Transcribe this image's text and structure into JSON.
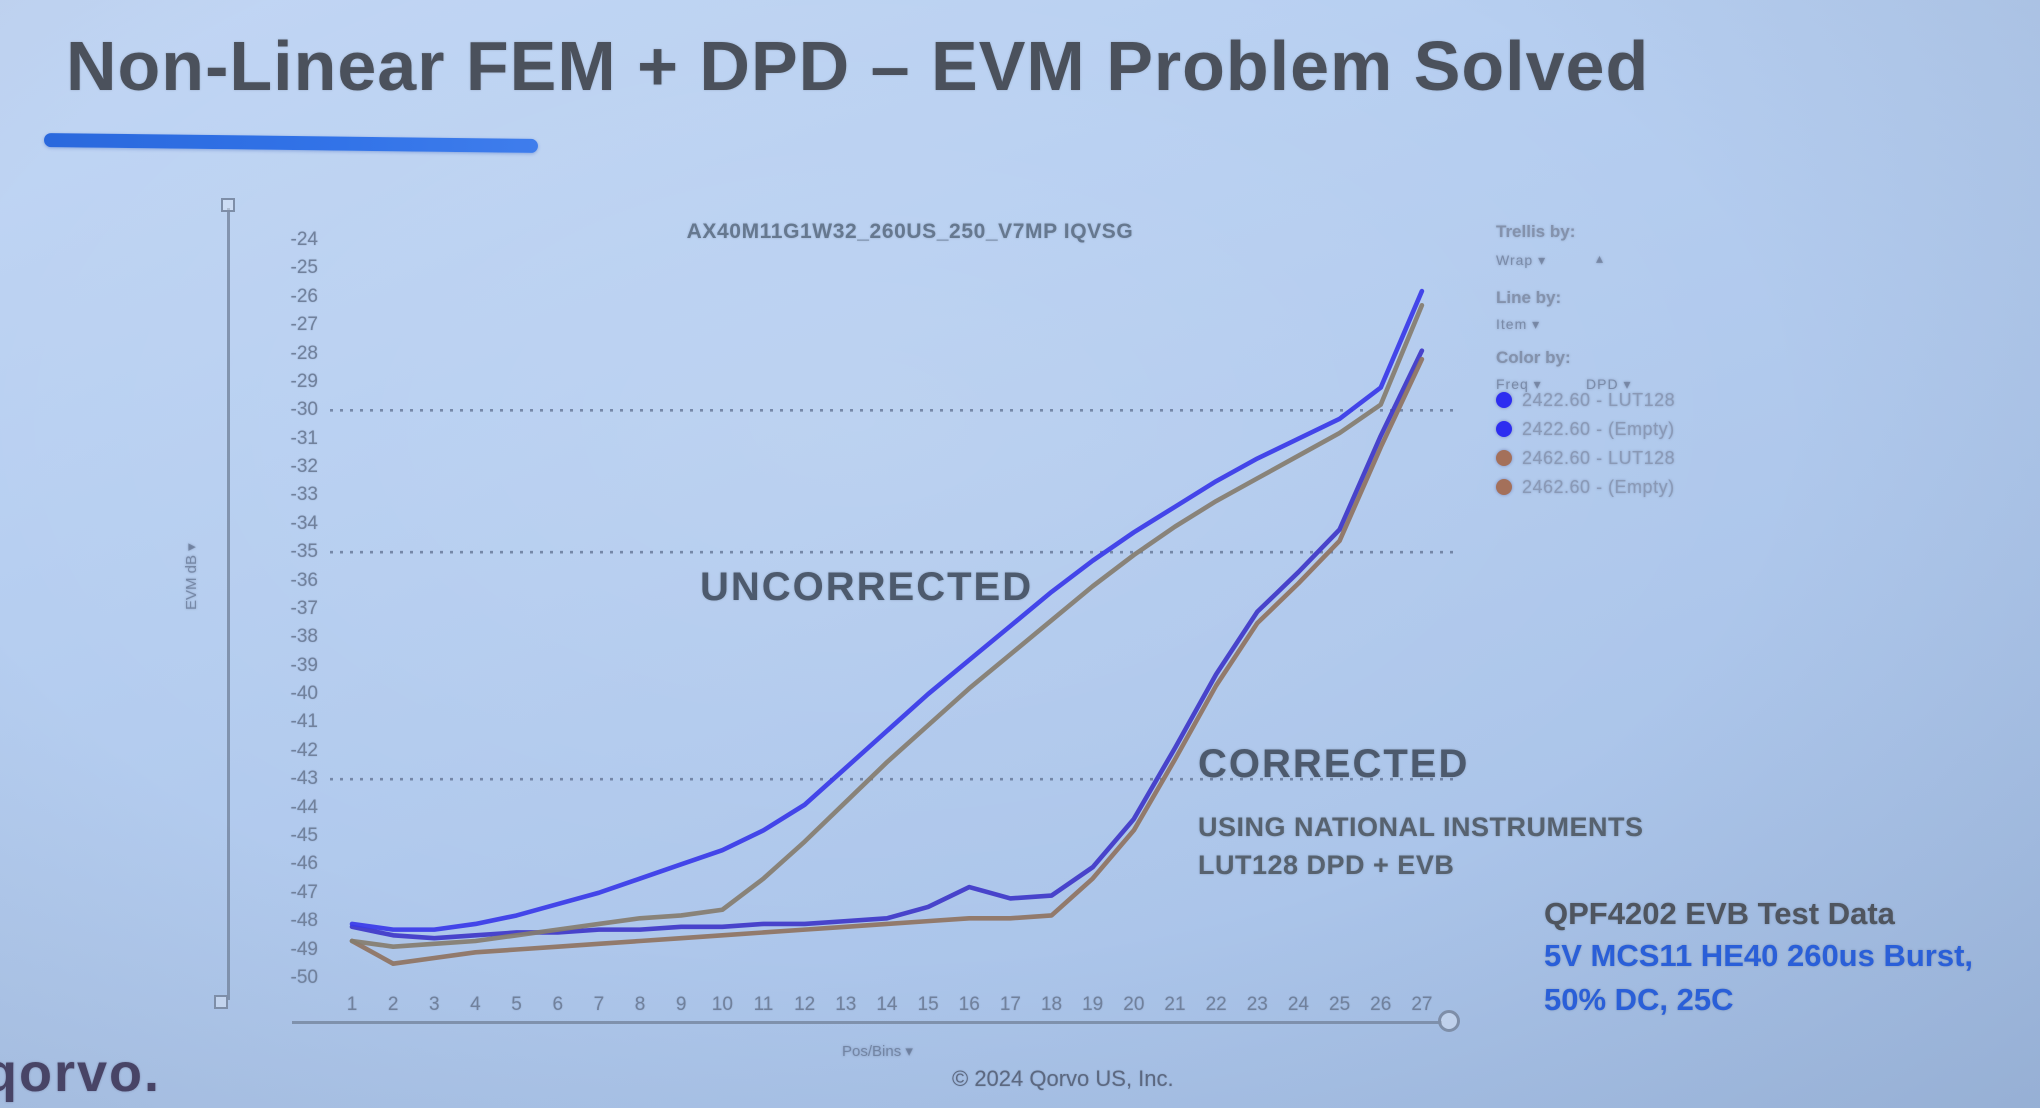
{
  "slide": {
    "title": "Non-Linear FEM + DPD – EVM Problem Solved",
    "logo_text": "qorvo.",
    "copyright": "© 2024 Qorvo US, Inc."
  },
  "chart_controls": {
    "trellis_by_label": "Trellis by:",
    "trellis_by_value": "Wrap ▾",
    "trellis_by_extra": "▴",
    "line_by_label": "Line by:",
    "line_by_value": "Item ▾",
    "color_by_label": "Color by:",
    "color_by_value_1": "Freq ▾",
    "color_by_value_2": "DPD ▾",
    "x_axis_control": "Pos/Bins ▾",
    "y_axis_control": "EVM dB ▾"
  },
  "legend": {
    "items": [
      {
        "label": "2422.60 - LUT128",
        "color": "#2d2df0"
      },
      {
        "label": "2422.60 - (Empty)",
        "color": "#2d2df0"
      },
      {
        "label": "2462.60 - LUT128",
        "color": "#a4705a"
      },
      {
        "label": "2462.60 - (Empty)",
        "color": "#a4705a"
      }
    ]
  },
  "annotations": {
    "uncorrected": "UNCORRECTED",
    "corrected": "CORRECTED",
    "corrected_sub1": "USING NATIONAL INSTRUMENTS",
    "corrected_sub2": "LUT128 DPD + EVB"
  },
  "callout": {
    "line1": "QPF4202 EVB Test Data",
    "line2": "5V MCS11 HE40 260us Burst,",
    "line3": "50% DC, 25C"
  },
  "chart_data": {
    "type": "line",
    "title": "AX40M11G1W32_260US_250_V7MP IQVSG",
    "xlabel": "Pos/Bins",
    "ylabel": "EVM dB",
    "x": [
      1,
      2,
      3,
      4,
      5,
      6,
      7,
      8,
      9,
      10,
      11,
      12,
      13,
      14,
      15,
      16,
      17,
      18,
      19,
      20,
      21,
      22,
      23,
      24,
      25,
      26,
      27
    ],
    "y_ticks": [
      -24,
      -25,
      -26,
      -27,
      -28,
      -29,
      -30,
      -31,
      -32,
      -33,
      -34,
      -35,
      -36,
      -37,
      -38,
      -39,
      -40,
      -41,
      -42,
      -43,
      -44,
      -45,
      -46,
      -47,
      -48,
      -49,
      -50
    ],
    "ylim": [
      -50.5,
      -23.5
    ],
    "dashed_gridlines_at": [
      -30,
      -35,
      -43
    ],
    "legend_position": "right",
    "series": [
      {
        "name": "2422.60 - LUT128",
        "group": "corrected",
        "color": "#3f37c8",
        "values": [
          -48.2,
          -48.5,
          -48.6,
          -48.5,
          -48.4,
          -48.4,
          -48.3,
          -48.3,
          -48.2,
          -48.2,
          -48.1,
          -48.1,
          -48.0,
          -47.9,
          -47.5,
          -46.8,
          -47.2,
          -47.1,
          -46.1,
          -44.4,
          -41.9,
          -39.3,
          -37.1,
          -35.7,
          -34.2,
          -30.9,
          -27.9
        ]
      },
      {
        "name": "2422.60 - (Empty)",
        "group": "uncorrected",
        "color": "#3a3ae8",
        "values": [
          -48.1,
          -48.3,
          -48.3,
          -48.1,
          -47.8,
          -47.4,
          -47.0,
          -46.5,
          -46.0,
          -45.5,
          -44.8,
          -43.9,
          -42.6,
          -41.3,
          -40.0,
          -38.8,
          -37.6,
          -36.4,
          -35.3,
          -34.3,
          -33.4,
          -32.5,
          -31.7,
          -31.0,
          -30.3,
          -29.2,
          -25.8
        ]
      },
      {
        "name": "2462.60 - LUT128",
        "group": "corrected",
        "color": "#8f7361",
        "values": [
          -48.7,
          -49.5,
          -49.3,
          -49.1,
          -49.0,
          -48.9,
          -48.8,
          -48.7,
          -48.6,
          -48.5,
          -48.4,
          -48.3,
          -48.2,
          -48.1,
          -48.0,
          -47.9,
          -47.9,
          -47.8,
          -46.5,
          -44.8,
          -42.3,
          -39.7,
          -37.5,
          -36.1,
          -34.6,
          -31.3,
          -28.2
        ]
      },
      {
        "name": "2462.60 - (Empty)",
        "group": "uncorrected",
        "color": "#857d6f",
        "values": [
          -48.7,
          -48.9,
          -48.8,
          -48.7,
          -48.5,
          -48.3,
          -48.1,
          -47.9,
          -47.8,
          -47.6,
          -46.5,
          -45.2,
          -43.8,
          -42.4,
          -41.1,
          -39.8,
          -38.6,
          -37.4,
          -36.2,
          -35.1,
          -34.1,
          -33.2,
          -32.4,
          -31.6,
          -30.8,
          -29.8,
          -26.3
        ]
      }
    ]
  }
}
